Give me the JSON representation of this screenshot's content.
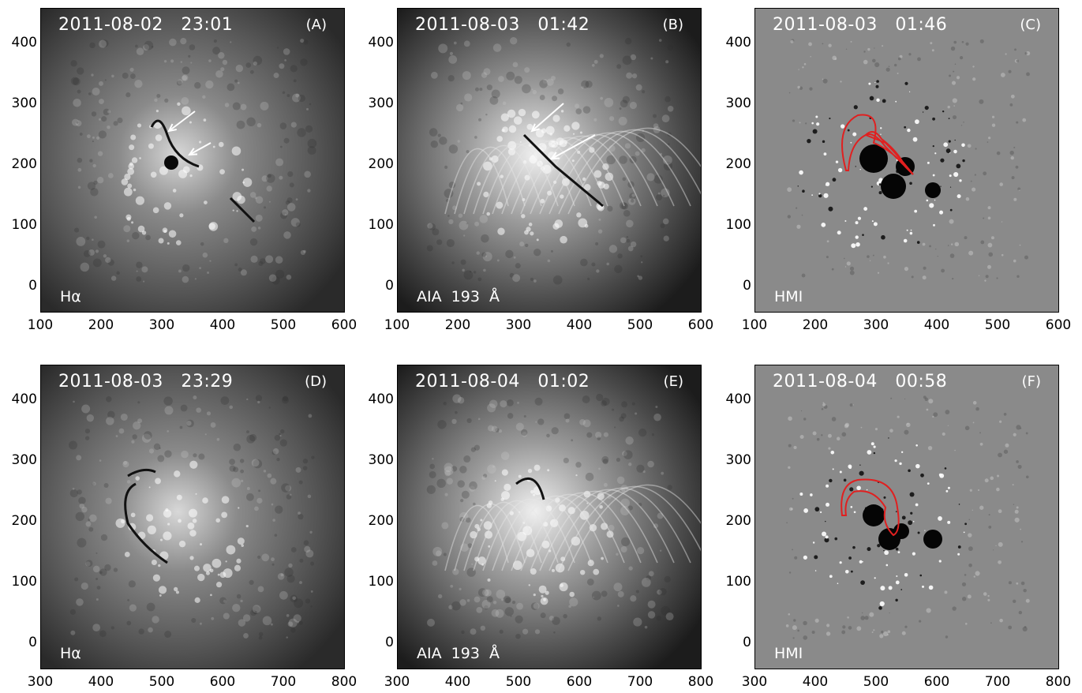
{
  "panels": [
    {
      "id": "A",
      "timestamp": "2011-08-02   23:01",
      "label": "(A)",
      "instrument": "Hα",
      "type": "halpha",
      "xticks": [
        "100",
        "200",
        "300",
        "400",
        "500",
        "600"
      ],
      "yticks": [
        "400",
        "300",
        "200",
        "100",
        "0"
      ]
    },
    {
      "id": "B",
      "timestamp": "2011-08-03   01:42",
      "label": "(B)",
      "instrument": "AIA  193  Å",
      "type": "aia",
      "xticks": [
        "100",
        "200",
        "300",
        "400",
        "500",
        "600"
      ],
      "yticks": [
        "400",
        "300",
        "200",
        "100",
        "0"
      ]
    },
    {
      "id": "C",
      "timestamp": "2011-08-03   01:46",
      "label": "(C)",
      "instrument": "HMI",
      "type": "hmi",
      "xticks": [
        "100",
        "200",
        "300",
        "400",
        "500",
        "600"
      ],
      "yticks": [
        "400",
        "300",
        "200",
        "100",
        "0"
      ]
    },
    {
      "id": "D",
      "timestamp": "2011-08-03   23:29",
      "label": "(D)",
      "instrument": "Hα",
      "type": "halpha",
      "xticks": [
        "300",
        "400",
        "500",
        "600",
        "700",
        "800"
      ],
      "yticks": [
        "400",
        "300",
        "200",
        "100",
        "0"
      ]
    },
    {
      "id": "E",
      "timestamp": "2011-08-04   01:02",
      "label": "(E)",
      "instrument": "AIA  193  Å",
      "type": "aia",
      "xticks": [
        "300",
        "400",
        "500",
        "600",
        "700",
        "800"
      ],
      "yticks": [
        "400",
        "300",
        "200",
        "100",
        "0"
      ]
    },
    {
      "id": "F",
      "timestamp": "2011-08-04   00:58",
      "label": "(F)",
      "instrument": "HMI",
      "type": "hmi",
      "xticks": [
        "300",
        "400",
        "500",
        "600",
        "700",
        "800"
      ],
      "yticks": [
        "400",
        "300",
        "200",
        "100",
        "0"
      ]
    }
  ],
  "colors": {
    "contour": "#e02020",
    "arrow": "#ffffff"
  }
}
